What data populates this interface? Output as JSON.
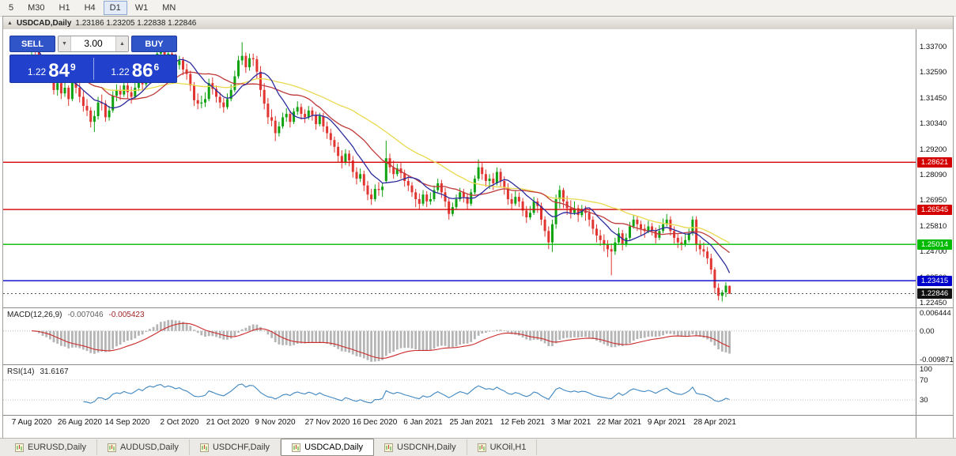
{
  "toolbar": {
    "timeframes": [
      {
        "label": "5",
        "active": false
      },
      {
        "label": "M30",
        "active": false
      },
      {
        "label": "H1",
        "active": false
      },
      {
        "label": "H4",
        "active": false
      },
      {
        "label": "D1",
        "active": true
      },
      {
        "label": "W1",
        "active": false
      },
      {
        "label": "MN",
        "active": false
      }
    ]
  },
  "icons": {
    "collapse": "▲",
    "volume_down": "▼",
    "volume_up": "▲"
  },
  "chart_window": {
    "title": "USDCAD,Daily",
    "ohlc": "1.23186 1.23205 1.22838 1.22846"
  },
  "trade_panel": {
    "sell_label": "SELL",
    "buy_label": "BUY",
    "volume": "3.00",
    "sell_price": {
      "prefix": "1.22",
      "big": "84",
      "sup": "9"
    },
    "buy_price": {
      "prefix": "1.22",
      "big": "86",
      "sup": "6"
    }
  },
  "indicators": {
    "macd": {
      "label": "MACD(12,26,9)",
      "value_main": "-0.007046",
      "value_signal": "-0.005423"
    },
    "rsi": {
      "label": "RSI(14)",
      "value": "31.6167"
    }
  },
  "tabs": {
    "items": [
      {
        "label": "EURUSD,Daily",
        "active": false
      },
      {
        "label": "AUDUSD,Daily",
        "active": false
      },
      {
        "label": "USDCHF,Daily",
        "active": false
      },
      {
        "label": "USDCAD,Daily",
        "active": true
      },
      {
        "label": "USDCNH,Daily",
        "active": false
      },
      {
        "label": "UKOil,H1",
        "active": false
      }
    ]
  },
  "chart_data": {
    "type": "candlestick",
    "title": "USDCAD,Daily",
    "symbol": "USDCAD",
    "timeframe": "Daily",
    "up_color": "#0fa30f",
    "down_color": "#e03530",
    "price_range": {
      "min": 1.2224,
      "max": 1.3447
    },
    "price_axis_labels": [
      "1.33700",
      "1.32590",
      "1.31450",
      "1.30340",
      "1.29200",
      "1.28090",
      "1.26950",
      "1.25810",
      "1.24700",
      "1.23560",
      "1.22450"
    ],
    "horizontal_lines": [
      {
        "price": 1.28621,
        "label": "1.28621",
        "color": "#d40000"
      },
      {
        "price": 1.26545,
        "label": "1.26545",
        "color": "#d40000"
      },
      {
        "price": 1.25014,
        "label": "1.25014",
        "color": "#00bb00"
      },
      {
        "price": 1.23415,
        "label": "1.23415",
        "color": "#0000cc"
      }
    ],
    "current_price": {
      "price": 1.22846,
      "label": "1.22846",
      "color": "#111111"
    },
    "moving_averages": [
      {
        "period": 40,
        "color": "#e9d94e"
      },
      {
        "period": 20,
        "color": "#c03a3a"
      },
      {
        "period": 10,
        "color": "#2b2b9e"
      }
    ],
    "macd_axis_labels": [
      {
        "value": 0.006444,
        "label": "0.006444"
      },
      {
        "value": 0,
        "label": "0.00"
      },
      {
        "value": -0.009871,
        "label": "-0.009871"
      }
    ],
    "rsi_axis_labels": [
      {
        "value": 100,
        "label": "100"
      },
      {
        "value": 70,
        "label": "70"
      },
      {
        "value": 30,
        "label": "30"
      }
    ],
    "rsi_levels": [
      70,
      30
    ],
    "date_ticks": [
      {
        "index": 0,
        "label": "7 Aug 2020"
      },
      {
        "index": 13,
        "label": "26 Aug 2020"
      },
      {
        "index": 26,
        "label": "14 Sep 2020"
      },
      {
        "index": 40,
        "label": "2 Oct 2020"
      },
      {
        "index": 53,
        "label": "21 Oct 2020"
      },
      {
        "index": 66,
        "label": "9 Nov 2020"
      },
      {
        "index": 80,
        "label": "27 Nov 2020"
      },
      {
        "index": 93,
        "label": "16 Dec 2020"
      },
      {
        "index": 106,
        "label": "6 Jan 2021"
      },
      {
        "index": 119,
        "label": "25 Jan 2021"
      },
      {
        "index": 133,
        "label": "12 Feb 2021"
      },
      {
        "index": 146,
        "label": "3 Mar 2021"
      },
      {
        "index": 159,
        "label": "22 Mar 2021"
      },
      {
        "index": 172,
        "label": "9 Apr 2021"
      },
      {
        "index": 185,
        "label": "28 Apr 2021"
      }
    ],
    "candles": [
      [
        1.336,
        1.3395,
        1.333,
        1.3382
      ],
      [
        1.3382,
        1.34,
        1.3335,
        1.335
      ],
      [
        1.335,
        1.337,
        1.329,
        1.331
      ],
      [
        1.331,
        1.333,
        1.3245,
        1.326
      ],
      [
        1.326,
        1.3305,
        1.324,
        1.328
      ],
      [
        1.328,
        1.3295,
        1.321,
        1.323
      ],
      [
        1.323,
        1.3255,
        1.316,
        1.318
      ],
      [
        1.318,
        1.323,
        1.3155,
        1.321
      ],
      [
        1.321,
        1.3225,
        1.314,
        1.3165
      ],
      [
        1.3165,
        1.3215,
        1.315,
        1.319
      ],
      [
        1.319,
        1.32,
        1.311,
        1.314
      ],
      [
        1.314,
        1.3235,
        1.313,
        1.322
      ],
      [
        1.322,
        1.3245,
        1.3165,
        1.319
      ],
      [
        1.319,
        1.321,
        1.3125,
        1.315
      ],
      [
        1.315,
        1.3175,
        1.3085,
        1.311
      ],
      [
        1.311,
        1.314,
        1.3065,
        1.309
      ],
      [
        1.309,
        1.3105,
        1.3015,
        1.304
      ],
      [
        1.304,
        1.309,
        1.2995,
        1.3065
      ],
      [
        1.3065,
        1.315,
        1.305,
        1.3125
      ],
      [
        1.3125,
        1.316,
        1.309,
        1.312
      ],
      [
        1.312,
        1.3135,
        1.304,
        1.306
      ],
      [
        1.306,
        1.311,
        1.3045,
        1.309
      ],
      [
        1.309,
        1.3175,
        1.308,
        1.3155
      ],
      [
        1.3155,
        1.3205,
        1.313,
        1.318
      ],
      [
        1.318,
        1.32,
        1.3135,
        1.316
      ],
      [
        1.316,
        1.3225,
        1.315,
        1.32
      ],
      [
        1.32,
        1.3215,
        1.314,
        1.317
      ],
      [
        1.317,
        1.3195,
        1.312,
        1.315
      ],
      [
        1.315,
        1.3215,
        1.314,
        1.319
      ],
      [
        1.319,
        1.3265,
        1.3175,
        1.324
      ],
      [
        1.324,
        1.3255,
        1.318,
        1.3205
      ],
      [
        1.3205,
        1.329,
        1.3195,
        1.327
      ],
      [
        1.327,
        1.333,
        1.3255,
        1.331
      ],
      [
        1.331,
        1.3325,
        1.326,
        1.329
      ],
      [
        1.329,
        1.336,
        1.328,
        1.334
      ],
      [
        1.334,
        1.3375,
        1.332,
        1.3355
      ],
      [
        1.3355,
        1.337,
        1.328,
        1.331
      ],
      [
        1.331,
        1.336,
        1.3295,
        1.334
      ],
      [
        1.334,
        1.3355,
        1.3295,
        1.332
      ],
      [
        1.332,
        1.334,
        1.3265,
        1.329
      ],
      [
        1.329,
        1.333,
        1.327,
        1.331
      ],
      [
        1.331,
        1.3325,
        1.3245,
        1.327
      ],
      [
        1.327,
        1.3295,
        1.3225,
        1.325
      ],
      [
        1.325,
        1.3265,
        1.3175,
        1.32
      ],
      [
        1.32,
        1.3215,
        1.311,
        1.3135
      ],
      [
        1.3135,
        1.3165,
        1.3095,
        1.312
      ],
      [
        1.312,
        1.3155,
        1.31,
        1.3125
      ],
      [
        1.3125,
        1.317,
        1.3105,
        1.314
      ],
      [
        1.314,
        1.323,
        1.313,
        1.321
      ],
      [
        1.321,
        1.3235,
        1.316,
        1.3185
      ],
      [
        1.3185,
        1.32,
        1.3125,
        1.315
      ],
      [
        1.315,
        1.317,
        1.31,
        1.3125
      ],
      [
        1.3125,
        1.3145,
        1.308,
        1.3105
      ],
      [
        1.3105,
        1.3165,
        1.3095,
        1.314
      ],
      [
        1.314,
        1.3205,
        1.313,
        1.318
      ],
      [
        1.318,
        1.3265,
        1.317,
        1.324
      ],
      [
        1.324,
        1.333,
        1.323,
        1.331
      ],
      [
        1.331,
        1.339,
        1.329,
        1.333
      ],
      [
        1.333,
        1.3345,
        1.3255,
        1.328
      ],
      [
        1.328,
        1.334,
        1.3265,
        1.332
      ],
      [
        1.332,
        1.334,
        1.3285,
        1.3315
      ],
      [
        1.3315,
        1.333,
        1.323,
        1.326
      ],
      [
        1.326,
        1.3285,
        1.315,
        1.318
      ],
      [
        1.318,
        1.321,
        1.3095,
        1.312
      ],
      [
        1.312,
        1.3145,
        1.303,
        1.306
      ],
      [
        1.306,
        1.3095,
        1.302,
        1.3045
      ],
      [
        1.3045,
        1.3065,
        1.2955,
        1.299
      ],
      [
        1.299,
        1.304,
        1.2975,
        1.302
      ],
      [
        1.302,
        1.308,
        1.301,
        1.306
      ],
      [
        1.306,
        1.31,
        1.304,
        1.3075
      ],
      [
        1.3075,
        1.309,
        1.3015,
        1.304
      ],
      [
        1.304,
        1.31,
        1.303,
        1.3085
      ],
      [
        1.3085,
        1.313,
        1.307,
        1.3105
      ],
      [
        1.3105,
        1.312,
        1.305,
        1.3075
      ],
      [
        1.3075,
        1.3095,
        1.3035,
        1.306
      ],
      [
        1.306,
        1.311,
        1.305,
        1.309
      ],
      [
        1.309,
        1.3105,
        1.3045,
        1.307
      ],
      [
        1.307,
        1.3085,
        1.3005,
        1.303
      ],
      [
        1.303,
        1.308,
        1.302,
        1.3065
      ],
      [
        1.3065,
        1.308,
        1.2995,
        1.302
      ],
      [
        1.302,
        1.304,
        1.2965,
        1.299
      ],
      [
        1.299,
        1.301,
        1.2935,
        1.296
      ],
      [
        1.296,
        1.2975,
        1.2905,
        1.293
      ],
      [
        1.293,
        1.295,
        1.2865,
        1.289
      ],
      [
        1.289,
        1.2915,
        1.2835,
        1.286
      ],
      [
        1.286,
        1.292,
        1.285,
        1.29
      ],
      [
        1.29,
        1.2915,
        1.2845,
        1.287
      ],
      [
        1.287,
        1.289,
        1.2795,
        1.282
      ],
      [
        1.282,
        1.284,
        1.2765,
        1.279
      ],
      [
        1.279,
        1.2835,
        1.2775,
        1.281
      ],
      [
        1.281,
        1.2825,
        1.2735,
        1.276
      ],
      [
        1.276,
        1.278,
        1.2695,
        1.272
      ],
      [
        1.272,
        1.2745,
        1.2675,
        1.27
      ],
      [
        1.27,
        1.2765,
        1.269,
        1.2745
      ],
      [
        1.2745,
        1.2775,
        1.2715,
        1.274
      ],
      [
        1.274,
        1.277,
        1.271,
        1.2755
      ],
      [
        1.278,
        1.2957,
        1.277,
        1.288
      ],
      [
        1.288,
        1.29,
        1.2815,
        1.284
      ],
      [
        1.284,
        1.287,
        1.279,
        1.281
      ],
      [
        1.281,
        1.2855,
        1.28,
        1.2835
      ],
      [
        1.2835,
        1.286,
        1.279,
        1.2815
      ],
      [
        1.2815,
        1.283,
        1.2755,
        1.278
      ],
      [
        1.278,
        1.2805,
        1.2735,
        1.276
      ],
      [
        1.276,
        1.2775,
        1.271,
        1.273
      ],
      [
        1.273,
        1.2745,
        1.2665,
        1.27
      ],
      [
        1.27,
        1.2725,
        1.2655,
        1.268
      ],
      [
        1.268,
        1.274,
        1.267,
        1.272
      ],
      [
        1.272,
        1.2735,
        1.2665,
        1.269
      ],
      [
        1.269,
        1.273,
        1.2675,
        1.27
      ],
      [
        1.27,
        1.276,
        1.269,
        1.274
      ],
      [
        1.274,
        1.279,
        1.273,
        1.277
      ],
      [
        1.277,
        1.2785,
        1.2705,
        1.273
      ],
      [
        1.273,
        1.275,
        1.2665,
        1.269
      ],
      [
        1.269,
        1.2705,
        1.261,
        1.2635
      ],
      [
        1.2635,
        1.2685,
        1.2625,
        1.2665
      ],
      [
        1.2665,
        1.272,
        1.2655,
        1.27
      ],
      [
        1.27,
        1.275,
        1.269,
        1.273
      ],
      [
        1.273,
        1.2745,
        1.2685,
        1.271
      ],
      [
        1.271,
        1.2725,
        1.2655,
        1.268
      ],
      [
        1.268,
        1.2745,
        1.267,
        1.273
      ],
      [
        1.273,
        1.2805,
        1.272,
        1.279
      ],
      [
        1.279,
        1.2875,
        1.278,
        1.284
      ],
      [
        1.284,
        1.286,
        1.2785,
        1.281
      ],
      [
        1.281,
        1.283,
        1.2755,
        1.278
      ],
      [
        1.278,
        1.281,
        1.2745,
        1.279
      ],
      [
        1.279,
        1.2815,
        1.274,
        1.277
      ],
      [
        1.277,
        1.284,
        1.276,
        1.282
      ],
      [
        1.282,
        1.2835,
        1.2755,
        1.278
      ],
      [
        1.278,
        1.28,
        1.272,
        1.275
      ],
      [
        1.275,
        1.277,
        1.2675,
        1.27
      ],
      [
        1.27,
        1.2725,
        1.2655,
        1.268
      ],
      [
        1.268,
        1.274,
        1.267,
        1.271
      ],
      [
        1.271,
        1.273,
        1.2665,
        1.269
      ],
      [
        1.269,
        1.2705,
        1.2625,
        1.265
      ],
      [
        1.265,
        1.267,
        1.2595,
        1.262
      ],
      [
        1.262,
        1.267,
        1.261,
        1.264
      ],
      [
        1.264,
        1.271,
        1.263,
        1.269
      ],
      [
        1.269,
        1.2705,
        1.264,
        1.267
      ],
      [
        1.267,
        1.2685,
        1.2585,
        1.261
      ],
      [
        1.261,
        1.2625,
        1.2535,
        1.256
      ],
      [
        1.256,
        1.258,
        1.248,
        1.251
      ],
      [
        1.251,
        1.261,
        1.2468,
        1.259
      ],
      [
        1.259,
        1.272,
        1.257,
        1.27
      ],
      [
        1.27,
        1.276,
        1.266,
        1.274
      ],
      [
        1.274,
        1.275,
        1.266,
        1.269
      ],
      [
        1.269,
        1.2715,
        1.263,
        1.266
      ],
      [
        1.266,
        1.2695,
        1.2615,
        1.264
      ],
      [
        1.264,
        1.269,
        1.263,
        1.266
      ],
      [
        1.266,
        1.2675,
        1.26,
        1.263
      ],
      [
        1.263,
        1.2675,
        1.262,
        1.265
      ],
      [
        1.265,
        1.267,
        1.2605,
        1.264
      ],
      [
        1.264,
        1.2655,
        1.258,
        1.261
      ],
      [
        1.261,
        1.2625,
        1.2545,
        1.257
      ],
      [
        1.257,
        1.259,
        1.251,
        1.254
      ],
      [
        1.254,
        1.2565,
        1.2495,
        1.252
      ],
      [
        1.252,
        1.2545,
        1.247,
        1.25
      ],
      [
        1.25,
        1.252,
        1.2445,
        1.248
      ],
      [
        1.248,
        1.2505,
        1.2365,
        1.247
      ],
      [
        1.247,
        1.253,
        1.2455,
        1.251
      ],
      [
        1.251,
        1.2575,
        1.25,
        1.255
      ],
      [
        1.255,
        1.2565,
        1.2475,
        1.25
      ],
      [
        1.25,
        1.255,
        1.249,
        1.253
      ],
      [
        1.253,
        1.26,
        1.252,
        1.258
      ],
      [
        1.258,
        1.263,
        1.257,
        1.261
      ],
      [
        1.261,
        1.2625,
        1.256,
        1.259
      ],
      [
        1.259,
        1.2605,
        1.254,
        1.257
      ],
      [
        1.257,
        1.259,
        1.253,
        1.256
      ],
      [
        1.256,
        1.2605,
        1.255,
        1.258
      ],
      [
        1.258,
        1.2595,
        1.254,
        1.256
      ],
      [
        1.256,
        1.2575,
        1.2505,
        1.253
      ],
      [
        1.253,
        1.2585,
        1.252,
        1.256
      ],
      [
        1.256,
        1.2615,
        1.255,
        1.259
      ],
      [
        1.259,
        1.2635,
        1.258,
        1.261
      ],
      [
        1.261,
        1.2625,
        1.254,
        1.256
      ],
      [
        1.256,
        1.258,
        1.2505,
        1.253
      ],
      [
        1.253,
        1.255,
        1.2485,
        1.251
      ],
      [
        1.251,
        1.2535,
        1.2475,
        1.25
      ],
      [
        1.25,
        1.2545,
        1.249,
        1.252
      ],
      [
        1.252,
        1.257,
        1.251,
        1.255
      ],
      [
        1.255,
        1.2625,
        1.254,
        1.261
      ],
      [
        1.261,
        1.2625,
        1.247,
        1.25
      ],
      [
        1.25,
        1.252,
        1.2455,
        1.248
      ],
      [
        1.248,
        1.251,
        1.2445,
        1.247
      ],
      [
        1.247,
        1.249,
        1.2415,
        1.244
      ],
      [
        1.244,
        1.246,
        1.237,
        1.239
      ],
      [
        1.239,
        1.24,
        1.2285,
        1.231
      ],
      [
        1.231,
        1.233,
        1.2255,
        1.2275
      ],
      [
        1.2275,
        1.23,
        1.225,
        1.229
      ],
      [
        1.229,
        1.2335,
        1.227,
        1.232
      ],
      [
        1.23186,
        1.23205,
        1.22838,
        1.22846
      ]
    ]
  }
}
